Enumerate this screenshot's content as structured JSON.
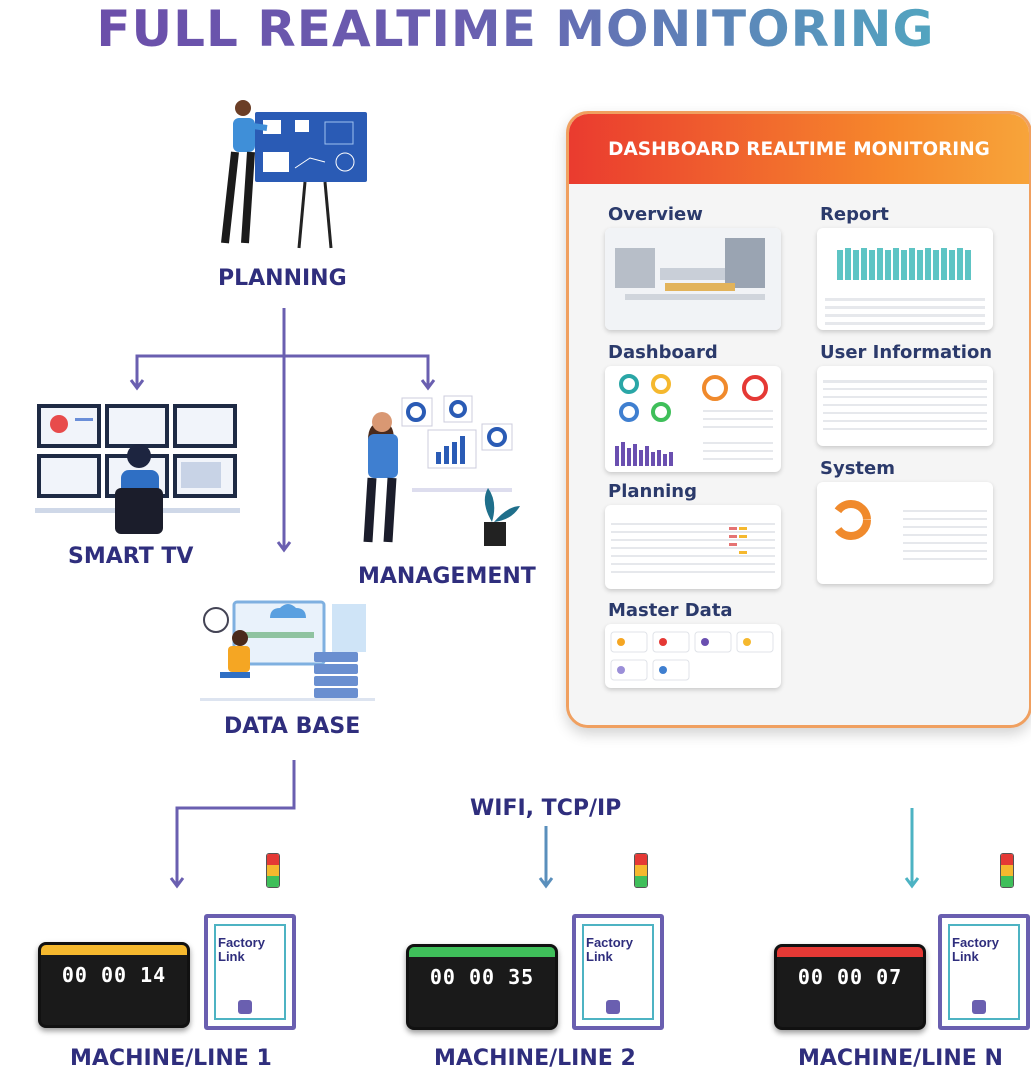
{
  "title": "FULL REALTIME MONITORING",
  "nodes": {
    "planning": "PLANNING",
    "smart_tv": "SMART TV",
    "management": "MANAGEMENT",
    "database": "DATA BASE",
    "network": "WIFI, TCP/IP"
  },
  "machines": [
    {
      "label": "MACHINE/LINE 1",
      "time": "00 00 14",
      "bar_color": "#f5b82e"
    },
    {
      "label": "MACHINE/LINE 2",
      "time": "00 00 35",
      "bar_color": "#3fbf5a"
    },
    {
      "label": "MACHINE/LINE N",
      "time": "00 00 07",
      "bar_color": "#e53935"
    }
  ],
  "device": {
    "brand_line1": "Factory",
    "brand_line2": "Link"
  },
  "dashboard": {
    "title": "DASHBOARD REALTIME MONITORING",
    "sections": {
      "overview": "Overview",
      "report": "Report",
      "dashboard": "Dashboard",
      "user_information": "User Information",
      "planning": "Planning",
      "system": "System",
      "master_data": "Master Data"
    }
  },
  "colors": {
    "purple": "#6a5fb0",
    "teal": "#4db3c3",
    "navy": "#2f2e7d",
    "orange": "#f6882c",
    "red": "#ea3b2f"
  }
}
